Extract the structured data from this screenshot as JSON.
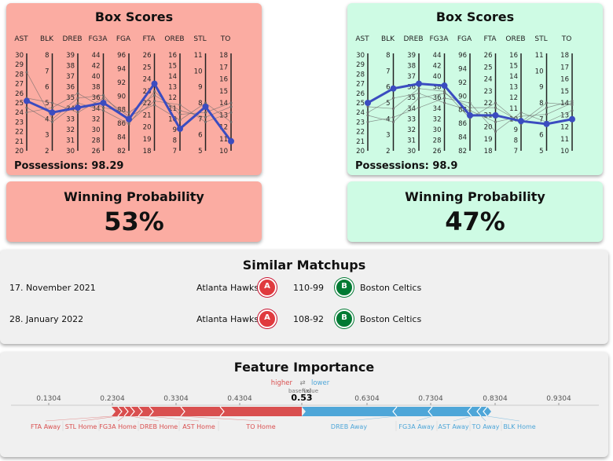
{
  "home": {
    "title": "Box Scores",
    "possessions": "Possessions: 98.29",
    "prob_title": "Winning Probability",
    "prob_value": "53%",
    "color": "#fbaca2",
    "axes": [
      {
        "name": "AST",
        "ticks": [
          "30",
          "29",
          "28",
          "27",
          "26",
          "25",
          "24",
          "23",
          "22",
          "21",
          "20"
        ]
      },
      {
        "name": "BLK",
        "ticks": [
          "8",
          "7",
          "6",
          "5",
          "4",
          "3",
          "2"
        ]
      },
      {
        "name": "DREB",
        "ticks": [
          "39",
          "38",
          "37",
          "36",
          "35",
          "34",
          "33",
          "32",
          "31",
          "30"
        ]
      },
      {
        "name": "FG3A",
        "ticks": [
          "44",
          "42",
          "40",
          "38",
          "36",
          "34",
          "32",
          "30",
          "28",
          "26"
        ]
      },
      {
        "name": "FGA",
        "ticks": [
          "96",
          "94",
          "92",
          "90",
          "88",
          "86",
          "84",
          "82"
        ]
      },
      {
        "name": "FTA",
        "ticks": [
          "26",
          "25",
          "24",
          "23",
          "22",
          "21",
          "20",
          "19",
          "18"
        ]
      },
      {
        "name": "OREB",
        "ticks": [
          "16",
          "15",
          "14",
          "13",
          "12",
          "11",
          "10",
          "9",
          "8",
          "7"
        ]
      },
      {
        "name": "STL",
        "ticks": [
          "11",
          "10",
          "9",
          "8",
          "7",
          "6",
          "5"
        ]
      },
      {
        "name": "TO",
        "ticks": [
          "18",
          "17",
          "16",
          "15",
          "14",
          "13",
          "12",
          "11",
          "10"
        ]
      }
    ],
    "main_line": [
      0.52,
      0.4,
      0.45,
      0.5,
      0.33,
      0.7,
      0.23,
      0.46,
      0.1
    ],
    "bg_lines": [
      [
        0.82,
        0.33,
        0.55,
        0.58,
        0.3,
        0.52,
        0.48,
        0.3,
        0.4
      ],
      [
        0.45,
        0.3,
        0.5,
        0.42,
        0.28,
        0.62,
        0.38,
        0.4,
        0.5
      ],
      [
        0.55,
        0.5,
        0.4,
        0.55,
        0.36,
        0.48,
        0.32,
        0.5,
        0.3
      ],
      [
        0.4,
        0.45,
        0.6,
        0.45,
        0.4,
        0.58,
        0.42,
        0.35,
        0.46
      ]
    ]
  },
  "away": {
    "title": "Box Scores",
    "possessions": "Possessions: 98.9",
    "prob_title": "Winning Probability",
    "prob_value": "47%",
    "color": "#cefbe4",
    "axes": [
      {
        "name": "AST",
        "ticks": [
          "30",
          "29",
          "28",
          "27",
          "26",
          "25",
          "24",
          "23",
          "22",
          "21",
          "20"
        ]
      },
      {
        "name": "BLK",
        "ticks": [
          "8",
          "7",
          "6",
          "5",
          "4",
          "3",
          "2"
        ]
      },
      {
        "name": "DREB",
        "ticks": [
          "39",
          "38",
          "37",
          "36",
          "35",
          "34",
          "33",
          "32",
          "31",
          "30"
        ]
      },
      {
        "name": "FG3A",
        "ticks": [
          "44",
          "42",
          "40",
          "38",
          "36",
          "34",
          "32",
          "30",
          "28",
          "26"
        ]
      },
      {
        "name": "FGA",
        "ticks": [
          "96",
          "94",
          "92",
          "90",
          "88",
          "86",
          "84",
          "82"
        ]
      },
      {
        "name": "FTA",
        "ticks": [
          "26",
          "25",
          "24",
          "23",
          "22",
          "21",
          "20",
          "19",
          "18"
        ]
      },
      {
        "name": "OREB",
        "ticks": [
          "16",
          "15",
          "14",
          "13",
          "12",
          "11",
          "10",
          "9",
          "8",
          "7"
        ]
      },
      {
        "name": "STL",
        "ticks": [
          "11",
          "10",
          "9",
          "8",
          "7",
          "6",
          "5"
        ]
      },
      {
        "name": "TO",
        "ticks": [
          "18",
          "17",
          "16",
          "15",
          "14",
          "13",
          "12",
          "11",
          "10"
        ]
      }
    ],
    "main_line": [
      0.5,
      0.65,
      0.7,
      0.68,
      0.37,
      0.37,
      0.31,
      0.28,
      0.33
    ],
    "bg_lines": [
      [
        0.37,
        0.3,
        0.55,
        0.6,
        0.45,
        0.45,
        0.3,
        0.5,
        0.48
      ],
      [
        0.4,
        0.55,
        0.6,
        0.5,
        0.42,
        0.3,
        0.36,
        0.38,
        0.5
      ],
      [
        0.3,
        0.35,
        0.45,
        0.55,
        0.5,
        0.2,
        0.4,
        0.3,
        0.42
      ],
      [
        0.46,
        0.44,
        0.65,
        0.62,
        0.34,
        0.5,
        0.28,
        0.45,
        0.52
      ]
    ]
  },
  "similar": {
    "title": "Similar Matchups",
    "rows": [
      {
        "date": "17. November 2021",
        "home": "Atlanta Hawks",
        "score": "110-99",
        "away": "Boston Celtics"
      },
      {
        "date": "28. January 2022",
        "home": "Atlanta Hawks",
        "score": "108-92",
        "away": "Boston Celtics"
      }
    ]
  },
  "feature": {
    "title": "Feature Importance",
    "higher": "higher",
    "lower": "lower",
    "swap": "⇄",
    "base_value": "base value",
    "f_x": "f(x)",
    "output": "0.53",
    "ticks": [
      "0.1304",
      "0.2304",
      "0.3304",
      "0.4304",
      "0.53",
      "0.6304",
      "0.7304",
      "0.8304",
      "0.9304"
    ],
    "higher_color": "#d94f4f",
    "lower_color": "#4ea6d8",
    "red_labels": [
      "FTA Away",
      "STL Home",
      "FG3A Home",
      "DREB Home",
      "AST Home",
      "TO Home"
    ],
    "blue_labels": [
      "DREB Away",
      "FG3A Away",
      "AST Away",
      "TO Away",
      "BLK Home"
    ]
  }
}
